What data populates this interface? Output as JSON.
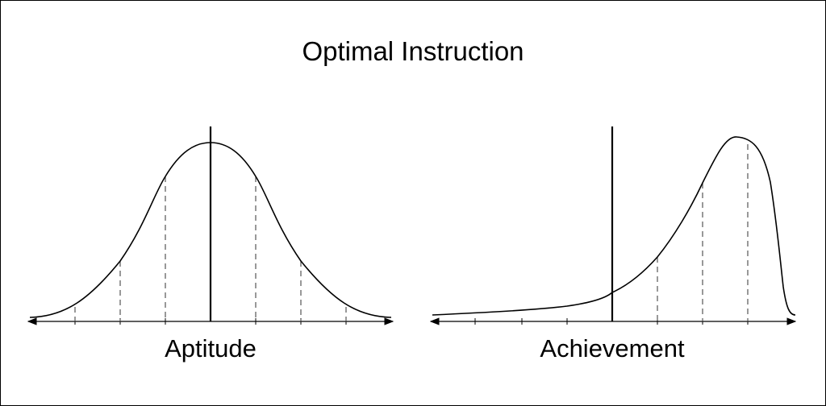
{
  "title": "Optimal Instruction",
  "colors": {
    "line": "#000000",
    "dashes": "#555555",
    "background": "#ffffff"
  },
  "panels": [
    {
      "label": "Aptitude",
      "distribution": "normal",
      "dashed_lines": 6
    },
    {
      "label": "Achievement",
      "distribution": "negatively skewed",
      "dashed_lines": 3
    }
  ]
}
